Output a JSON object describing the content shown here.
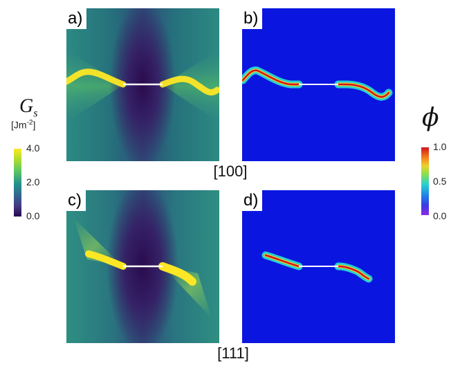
{
  "panels": [
    {
      "tag": "a)",
      "quantity": "Gs",
      "orientation": "[100]"
    },
    {
      "tag": "b)",
      "quantity": "phi",
      "orientation": "[100]"
    },
    {
      "tag": "c)",
      "quantity": "Gs",
      "orientation": "[111]"
    },
    {
      "tag": "d)",
      "quantity": "phi",
      "orientation": "[111]"
    }
  ],
  "captions": {
    "top": "[100]",
    "bottom": "[111]"
  },
  "gs_colorbar": {
    "symbol": "G",
    "subscript": "s",
    "unit_prefix": "[Jm",
    "unit_exp": "-2",
    "unit_suffix": "]",
    "ticks": [
      "4.0",
      "2.0",
      "0.0"
    ],
    "colors": [
      "#fde725",
      "#2a9a8a",
      "#35196b"
    ]
  },
  "phi_colorbar": {
    "symbol": "ϕ",
    "ticks": [
      "1.0",
      "0.5",
      "0.0"
    ],
    "colors": [
      "#e8141a",
      "#27cfd0",
      "#7a2ae0"
    ]
  }
}
